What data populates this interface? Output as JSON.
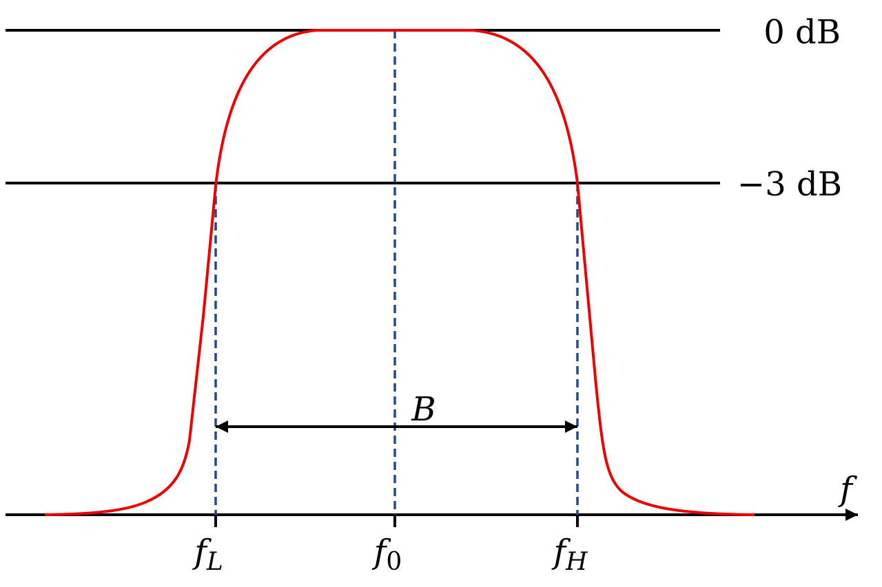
{
  "labels": {
    "zero_db": "0 dB",
    "minus3_db": "−3 dB",
    "bandwidth": "B",
    "axis": "f"
  },
  "markers": [
    {
      "symbol": "f",
      "subscript": "L"
    },
    {
      "symbol": "f",
      "subscript": "0"
    },
    {
      "symbol": "f",
      "subscript": "H"
    }
  ]
}
